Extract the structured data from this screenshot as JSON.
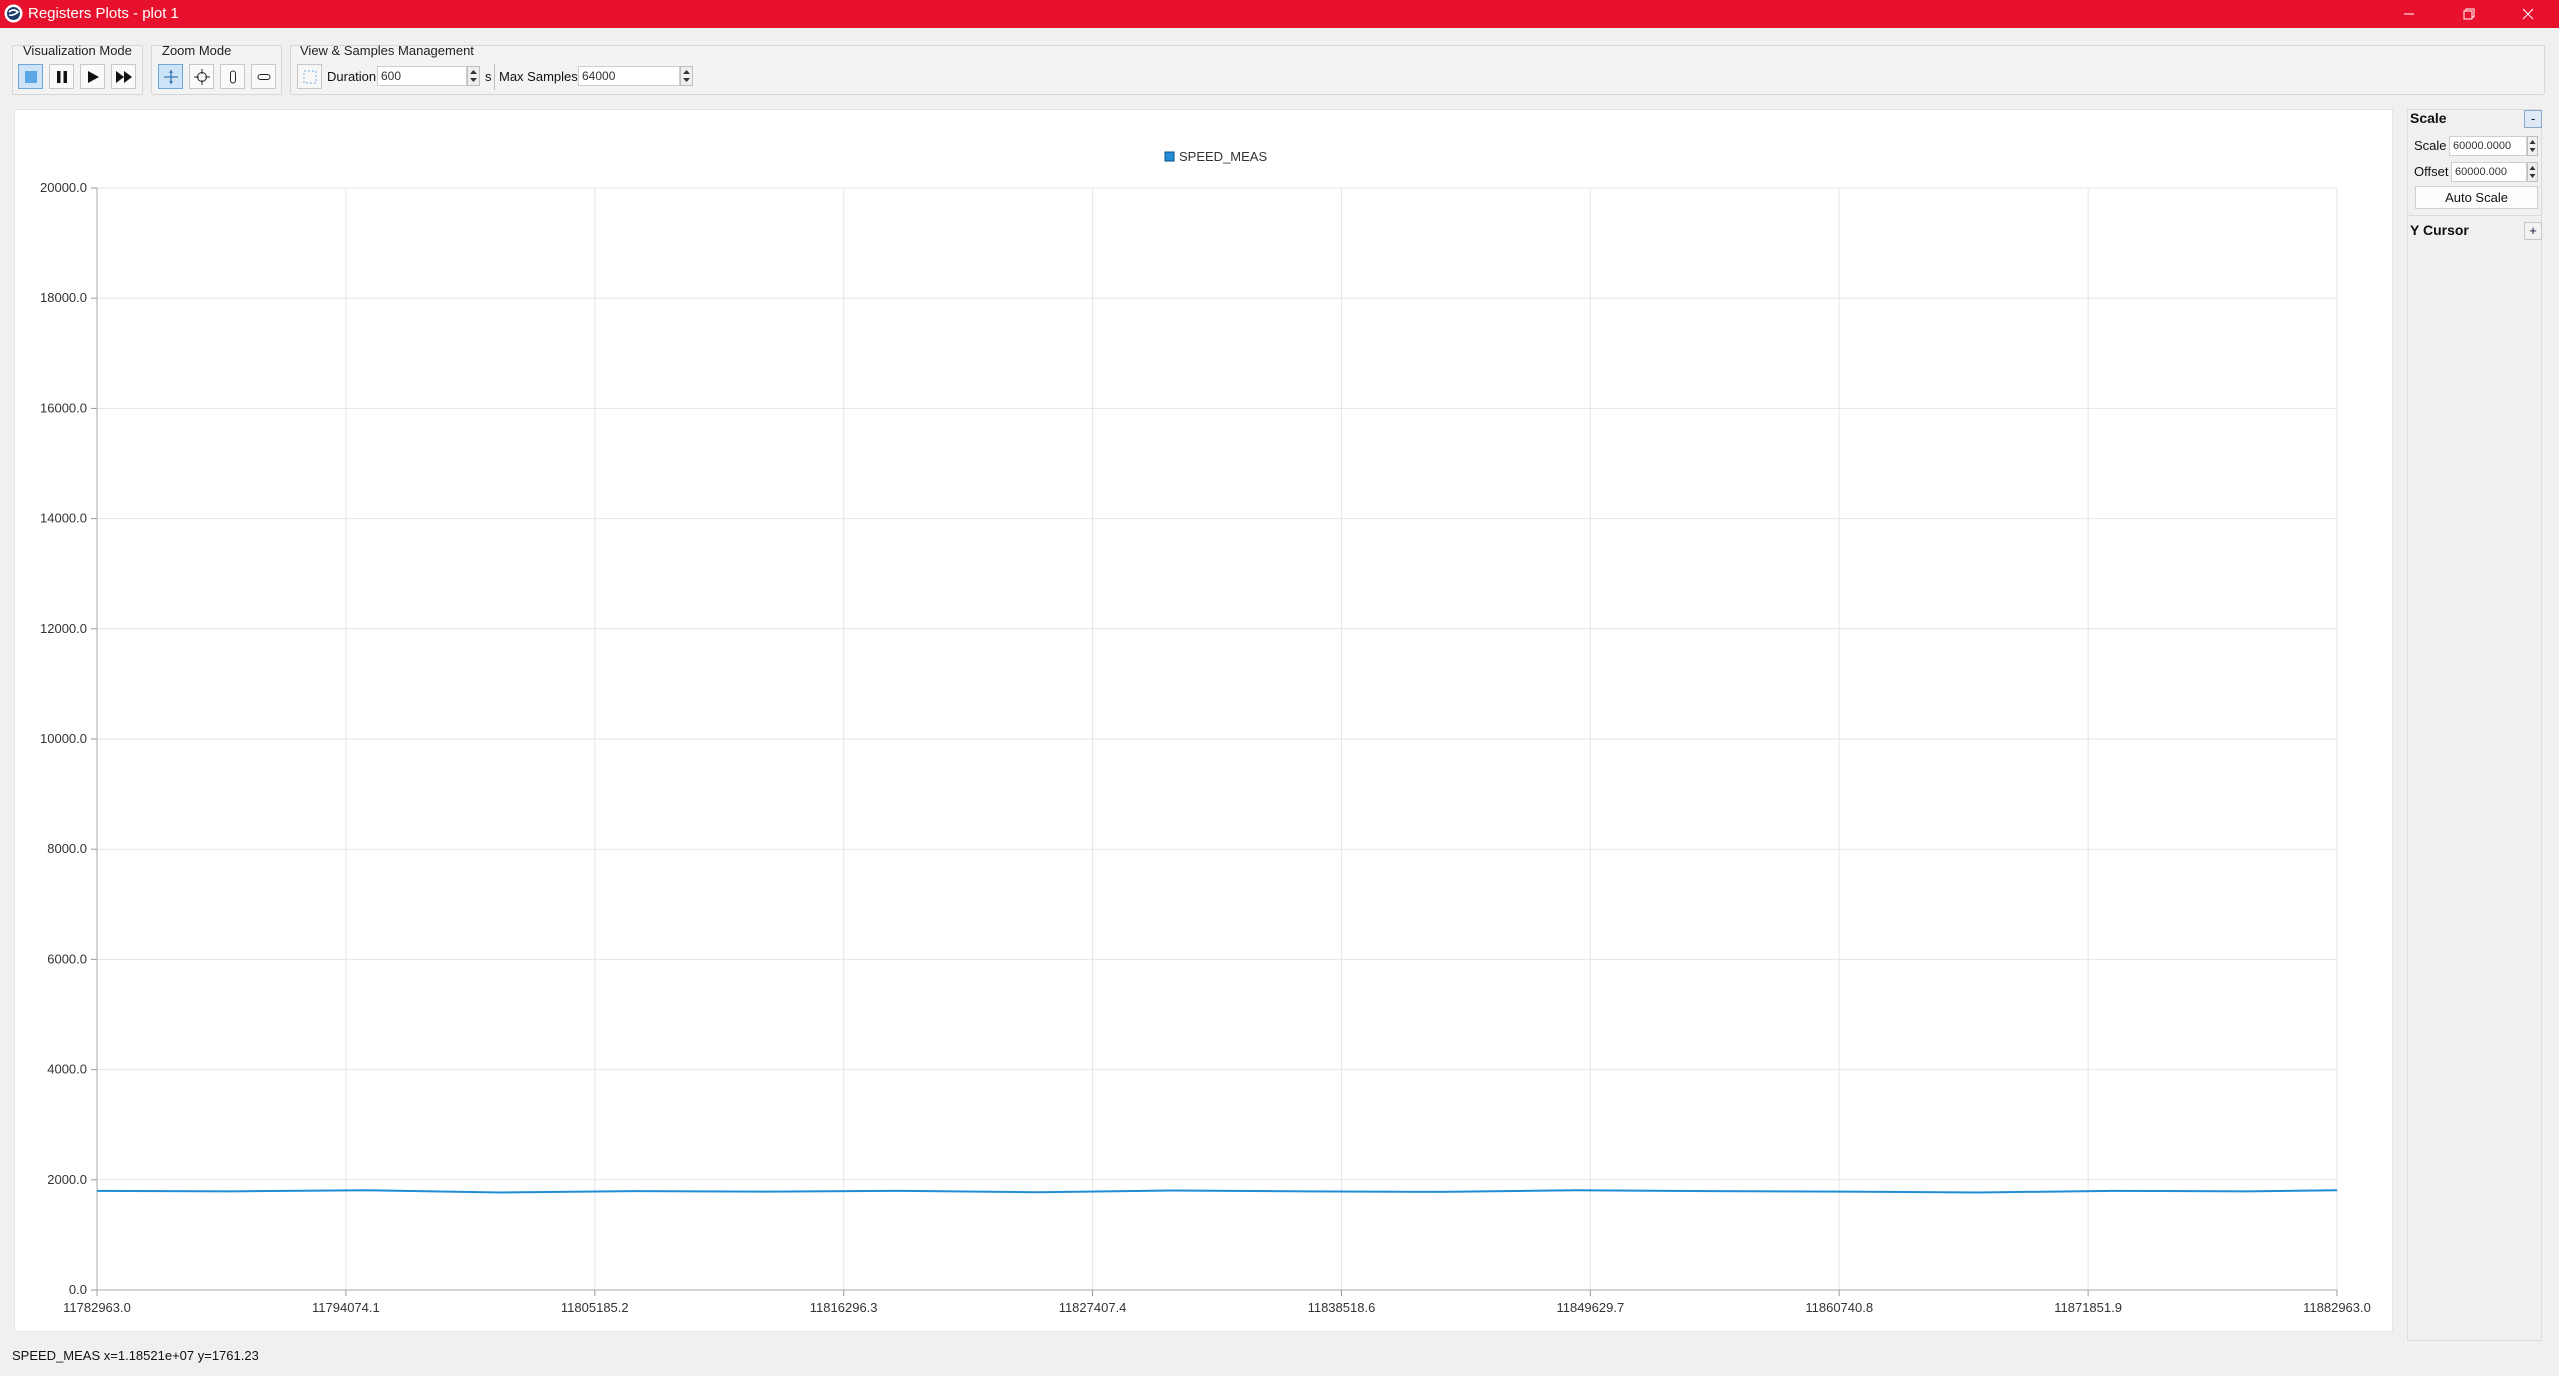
{
  "window": {
    "title": "Registers Plots - plot 1"
  },
  "toolbar": {
    "visualization_mode_label": "Visualization Mode",
    "zoom_mode_label": "Zoom Mode",
    "view_samples_label": "View & Samples Management",
    "duration_label": "Duration",
    "duration_value": "600",
    "duration_unit": "s",
    "max_samples_label": "Max Samples",
    "max_samples_value": "64000"
  },
  "right_panel": {
    "scale_header": "Scale",
    "scale_toggle": "-",
    "scale_label": "Scale",
    "scale_value": "60000.0000",
    "offset_label": "Offset",
    "offset_value": "60000.000",
    "auto_scale": "Auto Scale",
    "y_cursor_header": "Y Cursor",
    "y_cursor_toggle": "+"
  },
  "status": {
    "text": "SPEED_MEAS x=1.18521e+07 y=1761.23"
  },
  "colors": {
    "accent": "#e8112d",
    "series": "#1f8dd6"
  },
  "chart_data": {
    "type": "line",
    "legend": "top-center",
    "grid": true,
    "xlim": [
      11782963.0,
      11882963.0
    ],
    "ylim": [
      0,
      20000
    ],
    "x_ticks": [
      "11782963.0",
      "11794074.1",
      "11805185.2",
      "11816296.3",
      "11827407.4",
      "11838518.6",
      "11849629.7",
      "11860740.8",
      "11871851.9",
      "11882963.0"
    ],
    "y_ticks": [
      "0.0",
      "2000.0",
      "4000.0",
      "6000.0",
      "8000.0",
      "10000.0",
      "12000.0",
      "14000.0",
      "16000.0",
      "18000.0",
      "20000.0"
    ],
    "series": [
      {
        "name": "SPEED_MEAS",
        "color": "#1f8dd6",
        "x": [
          11782963,
          11788963,
          11794963,
          11800963,
          11806963,
          11812963,
          11818963,
          11824963,
          11830963,
          11836963,
          11842963,
          11848963,
          11854963,
          11860963,
          11866963,
          11872963,
          11878963,
          11882963
        ],
        "y": [
          1800,
          1790,
          1810,
          1770,
          1795,
          1785,
          1800,
          1775,
          1805,
          1790,
          1780,
          1810,
          1795,
          1785,
          1770,
          1800,
          1790,
          1810
        ]
      }
    ]
  }
}
